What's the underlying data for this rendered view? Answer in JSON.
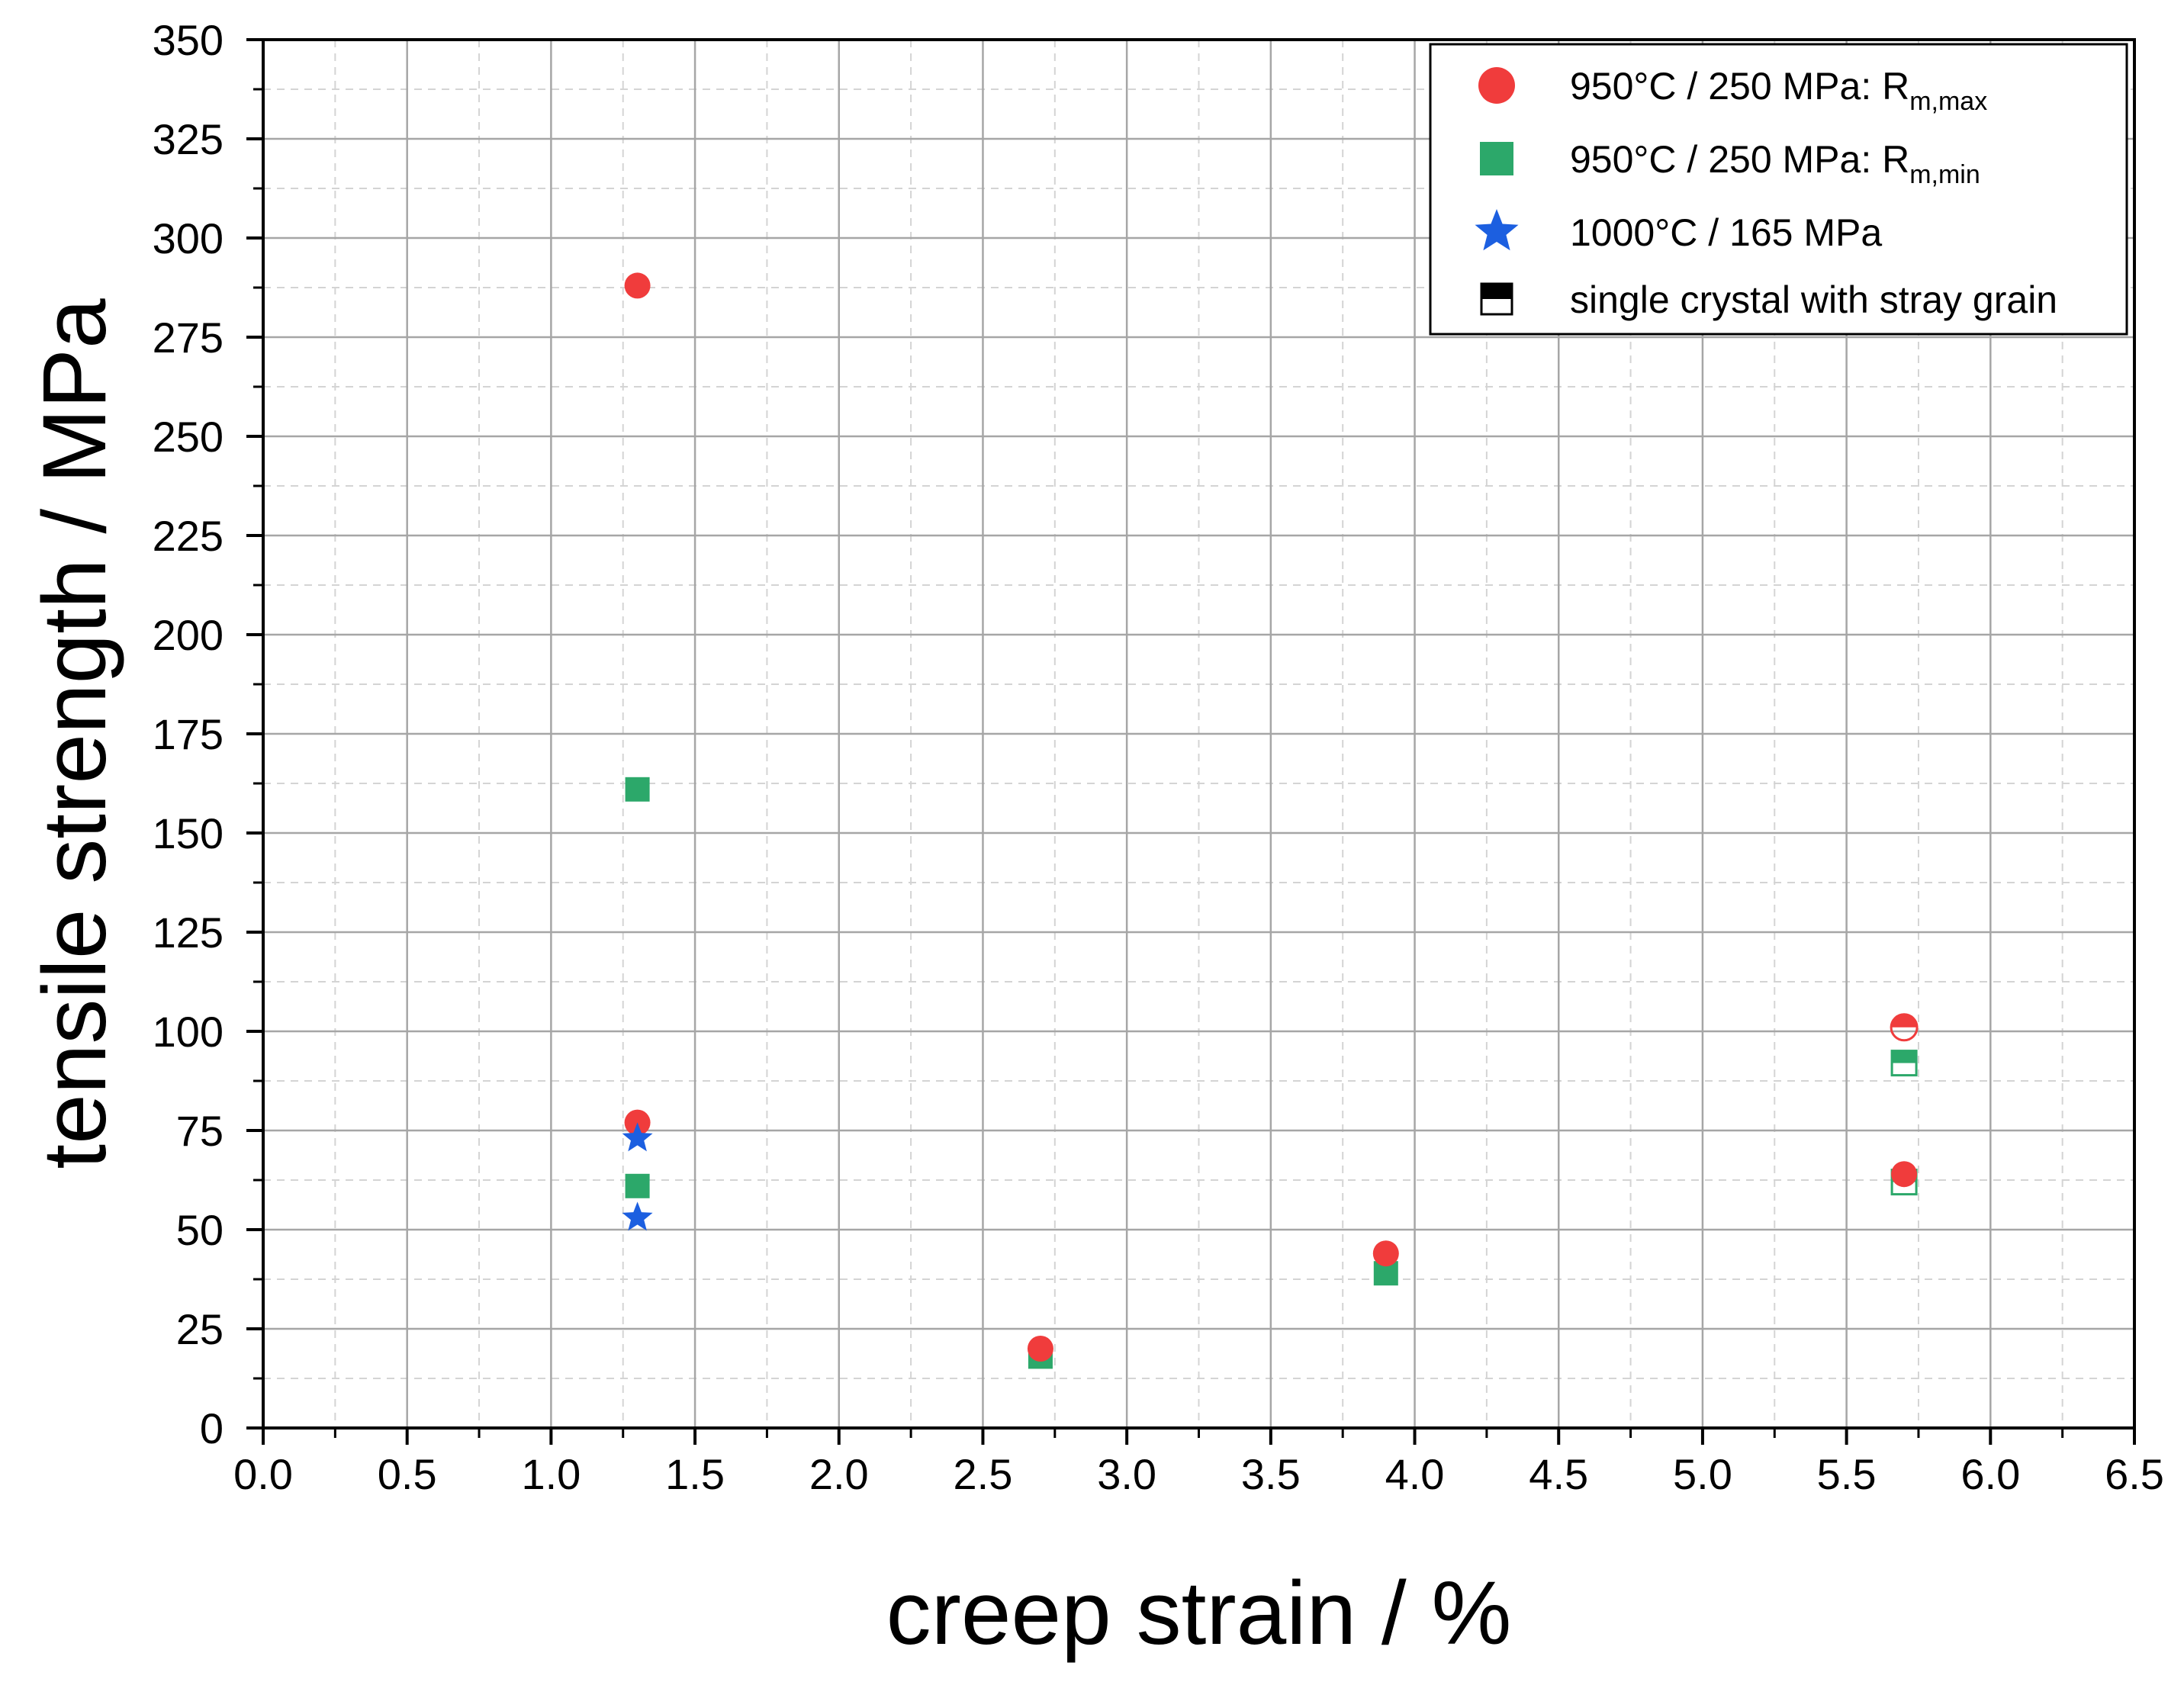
{
  "chart_data": {
    "type": "scatter",
    "title": "",
    "xlabel": "creep strain / %",
    "ylabel": "tensile strength / MPa",
    "xlim": [
      0,
      6.5
    ],
    "ylim": [
      0,
      350
    ],
    "x_ticks": [
      "0.0",
      "0.5",
      "1.0",
      "1.5",
      "2.0",
      "2.5",
      "3.0",
      "3.5",
      "4.0",
      "4.5",
      "5.0",
      "5.5",
      "6.0",
      "6.5"
    ],
    "y_ticks": [
      "0",
      "25",
      "50",
      "75",
      "100",
      "125",
      "150",
      "175",
      "200",
      "225",
      "250",
      "275",
      "300",
      "325",
      "350"
    ],
    "grid": true,
    "legend_position": "top-right",
    "series": [
      {
        "name": "950°C / 250 MPa: R",
        "subscript": "m,max",
        "marker": "circle",
        "color": "#f03c3c",
        "points": [
          {
            "x": 1.3,
            "y": 288,
            "stray_grain": false
          },
          {
            "x": 1.3,
            "y": 77,
            "stray_grain": false
          },
          {
            "x": 2.7,
            "y": 20,
            "stray_grain": false
          },
          {
            "x": 3.9,
            "y": 44,
            "stray_grain": false
          },
          {
            "x": 5.7,
            "y": 101,
            "stray_grain": true
          },
          {
            "x": 5.7,
            "y": 64,
            "stray_grain": false
          }
        ]
      },
      {
        "name": "950°C / 250 MPa: R",
        "subscript": "m,min",
        "marker": "square",
        "color": "#2ca86a",
        "points": [
          {
            "x": 1.3,
            "y": 161,
            "stray_grain": false
          },
          {
            "x": 1.3,
            "y": 61,
            "stray_grain": false
          },
          {
            "x": 2.7,
            "y": 18,
            "stray_grain": false
          },
          {
            "x": 3.9,
            "y": 39,
            "stray_grain": false
          },
          {
            "x": 5.7,
            "y": 92,
            "stray_grain": true
          },
          {
            "x": 5.7,
            "y": 62,
            "stray_grain": true
          }
        ]
      },
      {
        "name": "1000°C / 165 MPa",
        "subscript": "",
        "marker": "star",
        "color": "#1c5fe0",
        "points": [
          {
            "x": 1.3,
            "y": 73,
            "stray_grain": false
          },
          {
            "x": 1.3,
            "y": 53,
            "stray_grain": false
          }
        ]
      }
    ],
    "legend_extra": {
      "label": "single crystal with stray grain",
      "marker": "half-filled-square",
      "color": "#000000"
    }
  }
}
